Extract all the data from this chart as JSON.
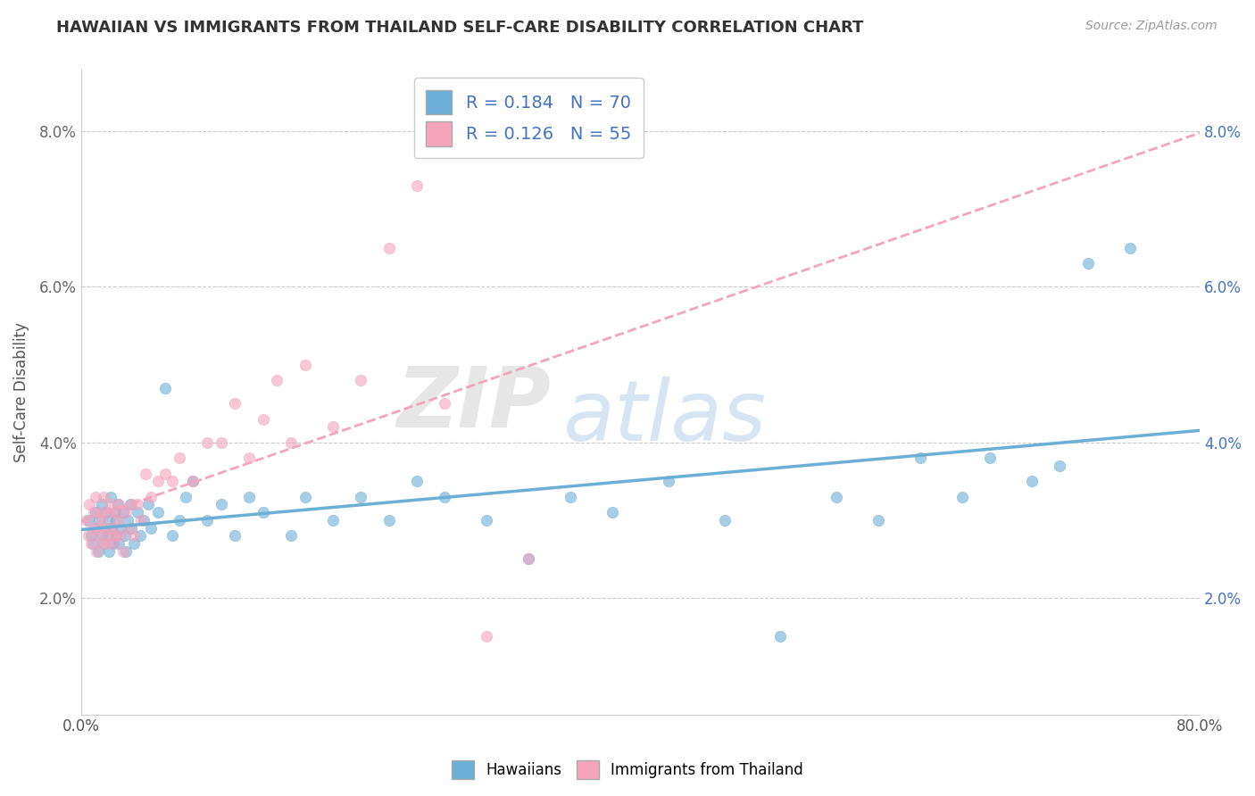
{
  "title": "HAWAIIAN VS IMMIGRANTS FROM THAILAND SELF-CARE DISABILITY CORRELATION CHART",
  "source": "Source: ZipAtlas.com",
  "ylabel": "Self-Care Disability",
  "R_hawaiian": 0.184,
  "N_hawaiian": 70,
  "R_thailand": 0.126,
  "N_thailand": 55,
  "hawaiian_color": "#6baed6",
  "thailand_color": "#f4a4bb",
  "background_color": "#ffffff",
  "x_min": 0.0,
  "x_max": 0.8,
  "y_min": 0.005,
  "y_max": 0.088,
  "hawaiian_x": [
    0.005,
    0.007,
    0.008,
    0.01,
    0.01,
    0.012,
    0.013,
    0.015,
    0.015,
    0.016,
    0.017,
    0.018,
    0.019,
    0.02,
    0.02,
    0.021,
    0.022,
    0.023,
    0.024,
    0.025,
    0.025,
    0.026,
    0.027,
    0.028,
    0.03,
    0.031,
    0.032,
    0.033,
    0.035,
    0.036,
    0.038,
    0.04,
    0.042,
    0.045,
    0.048,
    0.05,
    0.055,
    0.06,
    0.065,
    0.07,
    0.075,
    0.08,
    0.09,
    0.1,
    0.11,
    0.12,
    0.13,
    0.15,
    0.16,
    0.18,
    0.2,
    0.22,
    0.24,
    0.26,
    0.29,
    0.32,
    0.35,
    0.38,
    0.42,
    0.46,
    0.5,
    0.54,
    0.57,
    0.6,
    0.63,
    0.65,
    0.68,
    0.7,
    0.72,
    0.75
  ],
  "hawaiian_y": [
    0.03,
    0.028,
    0.027,
    0.029,
    0.031,
    0.026,
    0.03,
    0.028,
    0.032,
    0.027,
    0.029,
    0.031,
    0.028,
    0.026,
    0.03,
    0.033,
    0.029,
    0.027,
    0.031,
    0.028,
    0.03,
    0.032,
    0.027,
    0.029,
    0.031,
    0.028,
    0.026,
    0.03,
    0.032,
    0.029,
    0.027,
    0.031,
    0.028,
    0.03,
    0.032,
    0.029,
    0.031,
    0.047,
    0.028,
    0.03,
    0.033,
    0.035,
    0.03,
    0.032,
    0.028,
    0.033,
    0.031,
    0.028,
    0.033,
    0.03,
    0.033,
    0.03,
    0.035,
    0.033,
    0.03,
    0.025,
    0.033,
    0.031,
    0.035,
    0.03,
    0.015,
    0.033,
    0.03,
    0.038,
    0.033,
    0.038,
    0.035,
    0.037,
    0.063,
    0.065
  ],
  "thailand_x": [
    0.004,
    0.005,
    0.006,
    0.007,
    0.008,
    0.009,
    0.01,
    0.011,
    0.012,
    0.013,
    0.014,
    0.015,
    0.015,
    0.016,
    0.017,
    0.018,
    0.019,
    0.02,
    0.021,
    0.022,
    0.023,
    0.024,
    0.025,
    0.026,
    0.027,
    0.028,
    0.03,
    0.032,
    0.034,
    0.036,
    0.038,
    0.04,
    0.043,
    0.046,
    0.05,
    0.055,
    0.06,
    0.065,
    0.07,
    0.08,
    0.09,
    0.1,
    0.11,
    0.12,
    0.13,
    0.14,
    0.15,
    0.16,
    0.18,
    0.2,
    0.22,
    0.24,
    0.26,
    0.29,
    0.32
  ],
  "thailand_y": [
    0.03,
    0.028,
    0.032,
    0.027,
    0.029,
    0.031,
    0.033,
    0.026,
    0.029,
    0.028,
    0.031,
    0.027,
    0.03,
    0.033,
    0.029,
    0.027,
    0.031,
    0.028,
    0.032,
    0.029,
    0.027,
    0.031,
    0.028,
    0.03,
    0.032,
    0.028,
    0.026,
    0.031,
    0.029,
    0.032,
    0.028,
    0.032,
    0.03,
    0.036,
    0.033,
    0.035,
    0.036,
    0.035,
    0.038,
    0.035,
    0.04,
    0.04,
    0.045,
    0.038,
    0.043,
    0.048,
    0.04,
    0.05,
    0.042,
    0.048,
    0.065,
    0.073,
    0.045,
    0.015,
    0.025
  ],
  "legend_text_color": "#4472c4",
  "hawaiian_line_style": "solid",
  "thailand_line_style": "dashed"
}
